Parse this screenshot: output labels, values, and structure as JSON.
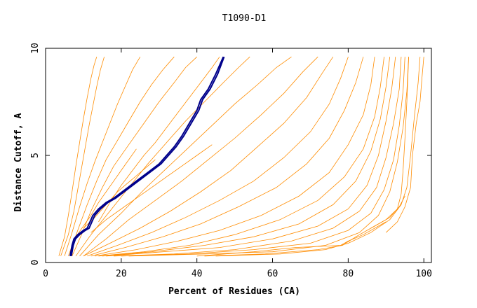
{
  "chart_data": {
    "type": "line",
    "title": "T1090-D1",
    "xlabel": "Percent of Residues (CA)",
    "ylabel": "Distance Cutoff, A",
    "xlim": [
      0,
      102
    ],
    "ylim": [
      0,
      10
    ],
    "xticks": [
      "0",
      "20",
      "40",
      "60",
      "80",
      "100"
    ],
    "yticks": [
      "0",
      "5",
      "10"
    ],
    "grid": false,
    "legend": "none",
    "colors": {
      "background_series": "#ff8c00",
      "highlight_series": "#00008b",
      "axes": "#000000"
    },
    "series": [
      {
        "color": "#ff8c00",
        "x": [
          3.5,
          5,
          6,
          7,
          8,
          9,
          10,
          11,
          12,
          12.8,
          13.5
        ],
        "y": [
          0.3,
          1.2,
          2.2,
          3.3,
          4.5,
          5.6,
          6.7,
          7.7,
          8.6,
          9.2,
          9.6
        ]
      },
      {
        "color": "#ff8c00",
        "x": [
          4,
          6,
          7.5,
          8.5,
          9.5,
          10.5,
          11.5,
          12.5,
          13.5,
          14.5,
          15.5
        ],
        "y": [
          0.3,
          1.3,
          2.4,
          3.4,
          4.4,
          5.4,
          6.4,
          7.3,
          8.2,
          9.0,
          9.6
        ]
      },
      {
        "color": "#ff8c00",
        "x": [
          5,
          7,
          9,
          11,
          13,
          15,
          17,
          19,
          21,
          23,
          25
        ],
        "y": [
          0.3,
          1.4,
          2.6,
          3.7,
          4.7,
          5.6,
          6.5,
          7.4,
          8.2,
          9.0,
          9.6
        ]
      },
      {
        "color": "#ff8c00",
        "x": [
          6,
          8.5,
          11,
          13.5,
          16,
          19,
          22,
          25,
          28,
          31,
          34
        ],
        "y": [
          0.3,
          1.5,
          2.7,
          3.8,
          4.8,
          5.7,
          6.6,
          7.5,
          8.3,
          9.0,
          9.6
        ]
      },
      {
        "color": "#ff8c00",
        "x": [
          7,
          9.5,
          12,
          15,
          18,
          22,
          26,
          30,
          34,
          37,
          40
        ],
        "y": [
          0.3,
          1.3,
          2.4,
          3.5,
          4.5,
          5.5,
          6.5,
          7.5,
          8.4,
          9.1,
          9.6
        ]
      },
      {
        "color": "#ff8c00",
        "x": [
          8,
          12,
          17,
          22,
          27,
          32,
          37,
          42,
          47,
          51,
          54
        ],
        "y": [
          0.3,
          1.3,
          2.4,
          3.5,
          4.6,
          5.6,
          6.6,
          7.5,
          8.4,
          9.1,
          9.6
        ]
      },
      {
        "color": "#ff8c00",
        "x": [
          9,
          14,
          20,
          26,
          32,
          38,
          44,
          50,
          56,
          61,
          65
        ],
        "y": [
          0.3,
          1.3,
          2.3,
          3.4,
          4.4,
          5.4,
          6.4,
          7.4,
          8.3,
          9.1,
          9.6
        ]
      },
      {
        "color": "#ff8c00",
        "x": [
          10,
          16,
          22,
          29,
          36,
          43,
          50,
          57,
          63,
          68,
          72
        ],
        "y": [
          0.3,
          1.1,
          2.0,
          2.9,
          3.8,
          4.8,
          5.8,
          6.9,
          7.9,
          8.9,
          9.6
        ]
      },
      {
        "color": "#ff8c00",
        "x": [
          10,
          17,
          25,
          33,
          41,
          49,
          56,
          63,
          69,
          73,
          76
        ],
        "y": [
          0.3,
          0.9,
          1.6,
          2.4,
          3.3,
          4.3,
          5.4,
          6.5,
          7.7,
          8.8,
          9.6
        ]
      },
      {
        "color": "#ff8c00",
        "x": [
          11,
          19,
          28,
          37,
          46,
          55,
          63,
          70,
          75,
          78,
          80
        ],
        "y": [
          0.3,
          0.8,
          1.4,
          2.1,
          2.9,
          3.8,
          4.9,
          6.1,
          7.4,
          8.6,
          9.6
        ]
      },
      {
        "color": "#ff8c00",
        "x": [
          12,
          21,
          31,
          41,
          51,
          61,
          69,
          75,
          79,
          82,
          84
        ],
        "y": [
          0.3,
          0.7,
          1.2,
          1.8,
          2.6,
          3.5,
          4.6,
          5.8,
          7.1,
          8.4,
          9.6
        ]
      },
      {
        "color": "#ff8c00",
        "x": [
          13,
          24,
          35,
          46,
          57,
          67,
          75,
          80,
          84,
          86,
          87
        ],
        "y": [
          0.3,
          0.6,
          1.0,
          1.5,
          2.2,
          3.1,
          4.2,
          5.5,
          6.9,
          8.3,
          9.6
        ]
      },
      {
        "color": "#ff8c00",
        "x": [
          14,
          26,
          38,
          50,
          62,
          72,
          79,
          84,
          87,
          88.5,
          89.5
        ],
        "y": [
          0.3,
          0.5,
          0.8,
          1.3,
          2.0,
          2.9,
          4.0,
          5.3,
          6.8,
          8.2,
          9.6
        ]
      },
      {
        "color": "#ff8c00",
        "x": [
          15,
          28,
          42,
          55,
          67,
          76,
          82,
          86,
          88.5,
          90,
          91
        ],
        "y": [
          0.3,
          0.5,
          0.8,
          1.2,
          1.8,
          2.7,
          3.8,
          5.2,
          6.7,
          8.2,
          9.6
        ]
      },
      {
        "color": "#ff8c00",
        "x": [
          16,
          31,
          46,
          60,
          72,
          80,
          85,
          88,
          90,
          91.5,
          92.5
        ],
        "y": [
          0.3,
          0.5,
          0.7,
          1.1,
          1.7,
          2.5,
          3.6,
          5.0,
          6.6,
          8.1,
          9.6
        ]
      },
      {
        "color": "#ff8c00",
        "x": [
          18,
          34,
          50,
          65,
          76,
          83,
          87.5,
          90,
          92,
          93.5,
          94
        ],
        "y": [
          0.3,
          0.4,
          0.6,
          1.0,
          1.6,
          2.4,
          3.5,
          4.9,
          6.5,
          8.1,
          9.6
        ]
      },
      {
        "color": "#ff8c00",
        "x": [
          20,
          38,
          55,
          70,
          80,
          86,
          89.5,
          92,
          93.5,
          94.5,
          95
        ],
        "y": [
          0.3,
          0.4,
          0.6,
          0.9,
          1.5,
          2.3,
          3.4,
          4.8,
          6.4,
          8.0,
          9.6
        ]
      },
      {
        "color": "#ff8c00",
        "x": [
          22,
          42,
          60,
          74,
          83,
          88,
          91,
          93,
          94.5,
          95.5,
          96
        ],
        "y": [
          0.3,
          0.4,
          0.5,
          0.8,
          1.4,
          2.2,
          3.3,
          4.7,
          6.3,
          8.0,
          9.6
        ]
      },
      {
        "color": "#ff8c00",
        "x": [
          40,
          55,
          66,
          78,
          80,
          84,
          88,
          90
        ],
        "y": [
          0.3,
          0.5,
          0.7,
          0.8,
          1.0,
          1.3,
          1.7,
          1.9
        ]
      },
      {
        "color": "#ff8c00",
        "x": [
          42,
          58,
          72,
          78.5,
          82,
          86,
          91,
          93.5,
          95
        ],
        "y": [
          0.3,
          0.4,
          0.6,
          0.8,
          1.2,
          1.6,
          2.1,
          2.6,
          3.1
        ]
      },
      {
        "color": "#ff8c00",
        "x": [
          45,
          62,
          74,
          80,
          86,
          91,
          94,
          95.5,
          96.5,
          97.5,
          98.5,
          99
        ],
        "y": [
          0.3,
          0.4,
          0.6,
          0.9,
          1.4,
          2.0,
          2.7,
          3.5,
          5.0,
          6.8,
          8.4,
          9.6
        ]
      },
      {
        "color": "#ff8c00",
        "x": [
          86,
          90,
          93,
          94,
          94.5,
          95,
          95.5,
          96
        ],
        "y": [
          1.6,
          2.0,
          2.5,
          3.2,
          4.3,
          5.8,
          7.5,
          9.6
        ]
      },
      {
        "color": "#ff8c00",
        "x": [
          90,
          93,
          95,
          96.5,
          97,
          98,
          99,
          99.5,
          100
        ],
        "y": [
          1.4,
          1.9,
          2.6,
          3.5,
          5.0,
          6.5,
          7.5,
          8.6,
          9.6
        ]
      },
      {
        "color": "#ff8c00",
        "x": [
          10,
          13,
          15,
          17,
          19,
          21,
          23,
          25,
          27,
          29
        ],
        "y": [
          1.6,
          2.1,
          2.5,
          2.9,
          3.3,
          3.6,
          3.9,
          4.2,
          4.5,
          4.8
        ]
      },
      {
        "color": "#ff8c00",
        "x": [
          8,
          10,
          12,
          14,
          16,
          18,
          20,
          22,
          24
        ],
        "y": [
          1.2,
          1.7,
          2.2,
          2.8,
          3.3,
          3.8,
          4.3,
          4.8,
          5.3
        ]
      },
      {
        "color": "#ff8c00",
        "x": [
          12,
          16,
          20,
          24,
          28,
          32,
          36,
          40,
          44
        ],
        "y": [
          1.4,
          2.0,
          2.5,
          3.0,
          3.5,
          4.0,
          4.5,
          5.0,
          5.5
        ]
      },
      {
        "color": "#ff8c00",
        "x": [
          14,
          17,
          20,
          23,
          26,
          29,
          32,
          35,
          38,
          41,
          44,
          46
        ],
        "y": [
          1.9,
          2.8,
          3.6,
          4.3,
          5.0,
          5.6,
          6.3,
          7.0,
          7.7,
          8.4,
          9.1,
          9.6
        ]
      },
      {
        "color": "#00008b",
        "x": [
          6.5,
          7,
          7.5,
          8.5,
          10,
          11,
          11.5,
          12.5,
          14,
          16,
          18,
          21,
          24,
          27,
          30,
          32,
          34,
          36,
          38,
          40,
          41,
          43,
          45,
          47
        ],
        "y": [
          0.3,
          0.8,
          1.1,
          1.3,
          1.5,
          1.6,
          1.8,
          2.2,
          2.5,
          2.8,
          3.0,
          3.4,
          3.8,
          4.2,
          4.6,
          5.0,
          5.4,
          5.9,
          6.5,
          7.1,
          7.6,
          8.1,
          8.8,
          9.6
        ]
      },
      {
        "color": "#00008b",
        "x": [
          6.8,
          7.3,
          7.9,
          9,
          10.5,
          11.5,
          12,
          13,
          14.5,
          16.5,
          18.5,
          21.5,
          24.5,
          27.5,
          30.5,
          32.5,
          34.5,
          36.5,
          38.5,
          40.5,
          41.5,
          43.5,
          45.5,
          47.2
        ],
        "y": [
          0.3,
          0.8,
          1.1,
          1.3,
          1.5,
          1.6,
          1.8,
          2.2,
          2.5,
          2.8,
          3.0,
          3.4,
          3.8,
          4.2,
          4.6,
          5.0,
          5.4,
          5.9,
          6.5,
          7.1,
          7.6,
          8.1,
          8.8,
          9.6
        ]
      }
    ]
  }
}
